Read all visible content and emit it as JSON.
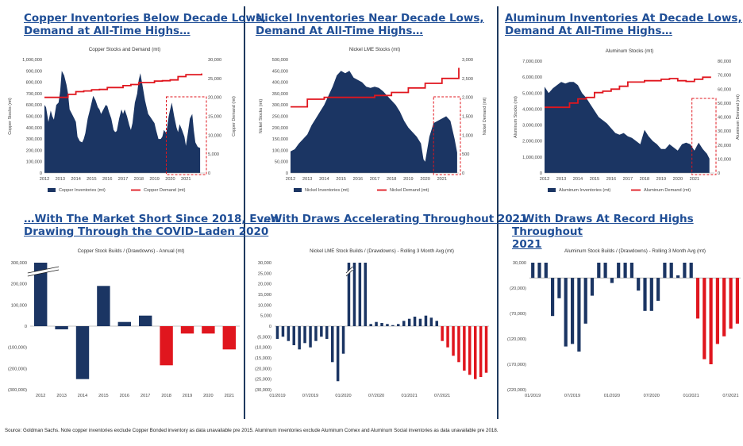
{
  "headings": [
    [
      "Copper Inventories Below Decade Lows,",
      "Demand at All-Time Highs…"
    ],
    [
      "Nickel Inventories Near Decade Lows,",
      "Demand At All-Time Highs…"
    ],
    [
      "Aluminum Inventories At Decade Lows,",
      "Demand At All-Time Highs…"
    ],
    [
      "…With The Market Short Since 2018, Even",
      "Drawing Through the COVID-Laden 2020"
    ],
    [
      "…With Draws Accelerating Throughout 2021"
    ],
    [
      "…With Draws At Record Highs Throughout",
      "2021"
    ]
  ],
  "source": "Source: Goldman Sachs. Note copper inventories exclude Copper Bonded inventory as data unavailable pre 2015. Aluminum inventories exclude Aluminum Comex and Aluminum Social inventories as data unavailable pre 2018.",
  "colors": {
    "navy": "#1b3563",
    "red": "#e0161e",
    "heading": "#1f4e96",
    "separator": "#1f3a5f"
  },
  "chart_data": [
    {
      "id": "copper-stocks",
      "type": "area",
      "title": "Copper Stocks and Demand (mt)",
      "ylabel": "Copper Stocks (mt)",
      "y2label": "Copper Demand (mt)",
      "ylim": [
        0,
        1000000
      ],
      "y2lim": [
        0,
        30000
      ],
      "yticks": [
        "1,000,000",
        "900,000",
        "800,000",
        "700,000",
        "600,000",
        "500,000",
        "400,000",
        "300,000",
        "200,000",
        "100,000",
        "0"
      ],
      "y2ticks": [
        "30,000",
        "25,000",
        "20,000",
        "15,000",
        "10,000",
        "5,000",
        "0"
      ],
      "xticks": [
        "2012",
        "2013",
        "2014",
        "2015",
        "2016",
        "2017",
        "2018",
        "2019",
        "2020",
        "2021"
      ],
      "xrange": [
        2012,
        2022.2
      ],
      "highlight_from": 2019.75,
      "series": [
        {
          "name": "Copper Inventories (mt)",
          "kind": "area",
          "x": [
            2012,
            2012.1,
            2012.25,
            2012.4,
            2012.5,
            2012.6,
            2012.75,
            2012.9,
            2013,
            2013.1,
            2013.25,
            2013.4,
            2013.5,
            2013.6,
            2013.75,
            2013.9,
            2014,
            2014.1,
            2014.25,
            2014.4,
            2014.5,
            2014.6,
            2014.75,
            2014.9,
            2015,
            2015.1,
            2015.25,
            2015.4,
            2015.5,
            2015.6,
            2015.75,
            2015.9,
            2016,
            2016.1,
            2016.25,
            2016.4,
            2016.5,
            2016.6,
            2016.75,
            2016.9,
            2017,
            2017.1,
            2017.25,
            2017.4,
            2017.5,
            2017.6,
            2017.75,
            2017.9,
            2018,
            2018.1,
            2018.25,
            2018.4,
            2018.5,
            2018.6,
            2018.75,
            2018.9,
            2019,
            2019.1,
            2019.25,
            2019.4,
            2019.5,
            2019.6,
            2019.75,
            2019.9,
            2020,
            2020.1,
            2020.25,
            2020.4,
            2020.5,
            2020.6,
            2020.75,
            2020.9,
            2021,
            2021.1,
            2021.25,
            2021.4,
            2021.5,
            2021.6,
            2021.75,
            2021.9
          ],
          "values": [
            600000,
            580000,
            450000,
            550000,
            500000,
            470000,
            600000,
            620000,
            720000,
            900000,
            860000,
            780000,
            700000,
            560000,
            520000,
            480000,
            450000,
            320000,
            280000,
            270000,
            300000,
            350000,
            480000,
            560000,
            620000,
            680000,
            640000,
            580000,
            560000,
            520000,
            560000,
            600000,
            590000,
            540000,
            480000,
            380000,
            360000,
            370000,
            480000,
            560000,
            520000,
            560000,
            500000,
            420000,
            380000,
            440000,
            620000,
            700000,
            820000,
            880000,
            760000,
            640000,
            580000,
            520000,
            490000,
            460000,
            440000,
            380000,
            300000,
            300000,
            320000,
            380000,
            350000,
            500000,
            560000,
            620000,
            500000,
            400000,
            360000,
            430000,
            380000,
            320000,
            240000,
            330000,
            480000,
            520000,
            380000,
            270000,
            230000,
            220000
          ]
        },
        {
          "name": "Copper Demand (mt)",
          "kind": "step",
          "axis": "y2",
          "x": [
            2012,
            2013,
            2013.5,
            2014,
            2014.5,
            2015,
            2015.5,
            2016,
            2017,
            2017.5,
            2018,
            2019,
            2019.5,
            2020,
            2020.5,
            2021,
            2022
          ],
          "values": [
            20000,
            20000,
            20800,
            21500,
            21700,
            22000,
            22100,
            22600,
            23100,
            23400,
            23900,
            24300,
            24400,
            24600,
            25500,
            26000,
            26300
          ]
        }
      ]
    },
    {
      "id": "nickel-stocks",
      "type": "area",
      "title": "Nickel LME Stocks (mt)",
      "ylabel": "Nickel Stocks (mt)",
      "y2label": "Nickel Demand (mt)",
      "ylim": [
        0,
        500000
      ],
      "y2lim": [
        0,
        3000
      ],
      "yticks": [
        "500,000",
        "450,000",
        "400,000",
        "350,000",
        "300,000",
        "250,000",
        "200,000",
        "150,000",
        "100,000",
        "50,000",
        "0"
      ],
      "y2ticks": [
        "3,000",
        "2,500",
        "2,000",
        "1,500",
        "1,000",
        "500",
        "0"
      ],
      "xticks": [
        "2012",
        "2013",
        "2014",
        "2015",
        "2016",
        "2017",
        "2018",
        "2019",
        "2020",
        "2021"
      ],
      "xrange": [
        2012,
        2022
      ],
      "highlight_from": 2020.5,
      "series": [
        {
          "name": "Nickel Inventories (mt)",
          "kind": "area",
          "x": [
            2012,
            2012.25,
            2012.5,
            2012.75,
            2013,
            2013.25,
            2013.5,
            2013.75,
            2014,
            2014.25,
            2014.5,
            2014.75,
            2015,
            2015.25,
            2015.5,
            2015.75,
            2016,
            2016.25,
            2016.5,
            2016.75,
            2017,
            2017.25,
            2017.5,
            2017.75,
            2018,
            2018.25,
            2018.5,
            2018.75,
            2019,
            2019.25,
            2019.5,
            2019.75,
            2019.9,
            2020,
            2020.25,
            2020.5,
            2020.75,
            2021,
            2021.25,
            2021.5,
            2021.75,
            2021.9
          ],
          "values": [
            95000,
            105000,
            130000,
            150000,
            170000,
            210000,
            240000,
            270000,
            300000,
            340000,
            380000,
            430000,
            450000,
            440000,
            450000,
            420000,
            410000,
            400000,
            380000,
            375000,
            380000,
            375000,
            360000,
            340000,
            320000,
            300000,
            270000,
            230000,
            200000,
            180000,
            160000,
            130000,
            60000,
            50000,
            160000,
            220000,
            230000,
            240000,
            250000,
            230000,
            150000,
            90000
          ]
        },
        {
          "name": "Nickel Demand (mt)",
          "kind": "step",
          "axis": "y2",
          "x": [
            2012,
            2013,
            2014,
            2015,
            2016,
            2017,
            2018,
            2019,
            2020,
            2021,
            2022
          ],
          "values": [
            1750,
            1950,
            2000,
            2000,
            2000,
            2050,
            2130,
            2250,
            2370,
            2500,
            2780
          ]
        }
      ]
    },
    {
      "id": "aluminum-stocks",
      "type": "area",
      "title": "Aluminum Stocks (mt)",
      "ylabel": "Aluminum Stocks (mt)",
      "y2label": "Aluminum Demand (mt)",
      "ylim": [
        0,
        7000000
      ],
      "y2lim": [
        0,
        80000
      ],
      "yticks": [
        "7,000,000",
        "6,000,000",
        "5,000,000",
        "4,000,000",
        "3,000,000",
        "2,000,000",
        "1,000,000",
        "0"
      ],
      "y2ticks": [
        "80,000",
        "70,000",
        "60,000",
        "50,000",
        "40,000",
        "30,000",
        "20,000",
        "10,000",
        "0"
      ],
      "xticks": [
        "2012",
        "2013",
        "2014",
        "2015",
        "2016",
        "2017",
        "2018",
        "2019",
        "2020",
        "2021"
      ],
      "xrange": [
        2012,
        2022.2
      ],
      "highlight_from": 2020.85,
      "series": [
        {
          "name": "Aluminum Inventories (mt)",
          "kind": "area",
          "x": [
            2012,
            2012.25,
            2012.5,
            2012.75,
            2013,
            2013.25,
            2013.5,
            2013.75,
            2014,
            2014.25,
            2014.5,
            2014.75,
            2015,
            2015.25,
            2015.5,
            2015.75,
            2016,
            2016.25,
            2016.5,
            2016.75,
            2017,
            2017.25,
            2017.5,
            2017.75,
            2018,
            2018.25,
            2018.5,
            2018.75,
            2019,
            2019.25,
            2019.5,
            2019.75,
            2020,
            2020.25,
            2020.5,
            2020.75,
            2021,
            2021.25,
            2021.5,
            2021.75,
            2021.9
          ],
          "values": [
            5400000,
            5000000,
            5300000,
            5500000,
            5700000,
            5600000,
            5700000,
            5700000,
            5500000,
            5000000,
            4700000,
            4300000,
            3900000,
            3500000,
            3300000,
            3100000,
            2800000,
            2500000,
            2400000,
            2500000,
            2300000,
            2200000,
            2000000,
            1800000,
            2700000,
            2300000,
            2000000,
            1800000,
            1500000,
            1500000,
            1800000,
            1600000,
            1400000,
            1800000,
            1900000,
            1800000,
            1400000,
            1900000,
            1500000,
            1200000,
            900000
          ]
        },
        {
          "name": "Aluminum Demand (mt)",
          "kind": "step",
          "axis": "y2",
          "x": [
            2012,
            2013,
            2013.5,
            2014,
            2014.5,
            2015,
            2015.5,
            2016,
            2016.5,
            2017,
            2018,
            2019,
            2019.5,
            2020,
            2020.5,
            2021,
            2021.5,
            2022
          ],
          "values": [
            47000,
            47000,
            50000,
            53000,
            54000,
            57500,
            58500,
            60000,
            62000,
            65000,
            66000,
            67000,
            67500,
            66000,
            65500,
            67000,
            68500,
            68500
          ]
        }
      ]
    },
    {
      "id": "copper-builds",
      "type": "bar",
      "title": "Copper Stock Builds / (Drawdowns) - Annual (mt)",
      "ylim": [
        -300000,
        300000
      ],
      "yticks": [
        "300,000",
        "200,000",
        "100,000",
        "0",
        "(100,000)",
        "(200,000)",
        "(300,000)"
      ],
      "categories": [
        "2012",
        "2013",
        "2014",
        "2015",
        "2016",
        "2017",
        "2018",
        "2019",
        "2020",
        "2021"
      ],
      "values": [
        300000,
        -15000,
        -250000,
        190000,
        20000,
        50000,
        -185000,
        -35000,
        -35000,
        -110000
      ],
      "capped": [
        true,
        false,
        false,
        false,
        false,
        false,
        false,
        false,
        false,
        false
      ],
      "highlight_from_index": 6
    },
    {
      "id": "nickel-builds",
      "type": "bar",
      "title": "Nickel LME Stock Builds / (Drawdowns) - Rolling 3 Month Avg (mt)",
      "ylim": [
        -30000,
        30000
      ],
      "yticks": [
        "30,000",
        "25,000",
        "20,000",
        "15,000",
        "10,000",
        "5,000",
        "0",
        "(5,000)",
        "(10,000)",
        "(15,000)",
        "(20,000)",
        "(25,000)",
        "(30,000)"
      ],
      "xticks": [
        "01/2019",
        "07/2019",
        "01/2020",
        "07/2020",
        "01/2021",
        "07/2021"
      ],
      "values": [
        -6000,
        -5000,
        -7000,
        -9000,
        -11000,
        -8000,
        -10000,
        -7000,
        -5000,
        -6000,
        -17000,
        -26000,
        -13000,
        30000,
        30000,
        30000,
        30000,
        1000,
        2000,
        1500,
        1000,
        500,
        1000,
        2500,
        3500,
        4500,
        3500,
        5000,
        4000,
        2500,
        -7000,
        -10000,
        -14000,
        -17000,
        -21000,
        -23000,
        -25000,
        -24000,
        -22000
      ],
      "capped": [
        false,
        false,
        false,
        false,
        false,
        false,
        false,
        false,
        false,
        false,
        false,
        false,
        false,
        true,
        false,
        false,
        false,
        false,
        false,
        false,
        false,
        false,
        false,
        false,
        false,
        false,
        false,
        false,
        false,
        false,
        false,
        false,
        false,
        false,
        false,
        false,
        false,
        false,
        false
      ],
      "highlight_from_index": 30
    },
    {
      "id": "aluminum-builds",
      "type": "bar",
      "title": "Aluminum Stock Builds / (Drawdowns) - Rolling 3 Month Avg (mt)",
      "ylim": [
        -220000,
        30000
      ],
      "yticks": [
        "30,000",
        "(20,000)",
        "(70,000)",
        "(120,000)",
        "(170,000)",
        "(220,000)"
      ],
      "xticks": [
        "01/2019",
        "07/2019",
        "01/2020",
        "07/2020",
        "01/2021",
        "07/2021"
      ],
      "values": [
        30000,
        30000,
        30000,
        -75000,
        -40000,
        -135000,
        -130000,
        -145000,
        -90000,
        -35000,
        30000,
        30000,
        -10000,
        30000,
        30000,
        30000,
        -25000,
        -65000,
        -65000,
        -45000,
        30000,
        30000,
        5000,
        30000,
        30000,
        -80000,
        -160000,
        -170000,
        -130000,
        -115000,
        -100000,
        -90000
      ],
      "highlight_from_index": 25
    }
  ]
}
